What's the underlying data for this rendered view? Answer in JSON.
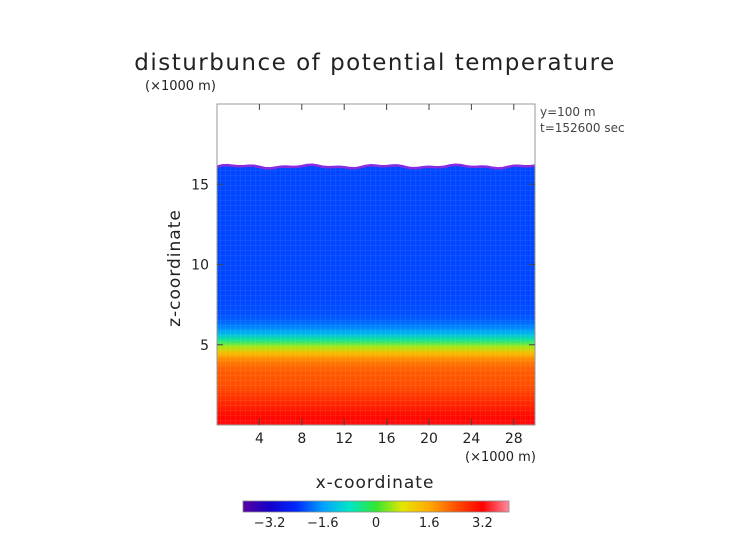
{
  "chart_data": {
    "type": "heatmap",
    "title": "disturbunce of potential temperature",
    "unit_label": "(×1000 m)",
    "xlabel": "x-coordinate",
    "ylabel": "z-coordinate",
    "x_unit_label": "(×1000 m)",
    "info_lines": [
      "y=100 m",
      "t=152600 sec"
    ],
    "xlim": [
      0,
      30
    ],
    "ylim": [
      0,
      20
    ],
    "x_ticks": [
      4,
      8,
      12,
      16,
      20,
      24,
      28
    ],
    "x_tick_labels": [
      "4",
      "8",
      "12",
      "16",
      "20",
      "24",
      "28"
    ],
    "y_ticks": [
      5,
      10,
      15
    ],
    "y_tick_labels": [
      "5",
      "10",
      "15"
    ],
    "colorbar": {
      "range": [
        -4,
        4
      ],
      "ticks": [
        -3.2,
        -1.6,
        0,
        1.6,
        3.2
      ],
      "tick_labels": [
        "−3.2",
        "−1.6",
        "0",
        "1.6",
        "3.2"
      ],
      "colors": [
        "#5a00a0",
        "#1400c8",
        "#0028ff",
        "#00a0ff",
        "#00e6c8",
        "#32e632",
        "#e6e600",
        "#ffaa00",
        "#ff5000",
        "#ff0000",
        "#ff8ca0"
      ]
    },
    "field": {
      "top_boundary_z": 16.1,
      "top_boundary_color": "#8a2be2",
      "upper_layer_value": -2.2,
      "transition_center_z": 5.0,
      "lower_layer_value": 2.4,
      "surface_value": 3.3
    }
  }
}
